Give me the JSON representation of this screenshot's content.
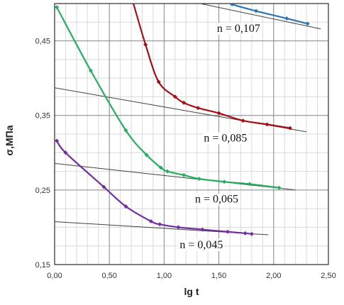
{
  "chart_data": {
    "type": "line",
    "xlabel": "lg t",
    "ylabel": "σ,МПа",
    "xlim": [
      0,
      2.5
    ],
    "ylim": [
      0.15,
      0.5
    ],
    "x_ticks": [
      0,
      0.5,
      1,
      1.5,
      2,
      2.5
    ],
    "x_tick_labels": [
      "0,00",
      "0,50",
      "1,00",
      "1,50",
      "2,00",
      "2,50"
    ],
    "y_ticks": [
      0.15,
      0.25,
      0.35,
      0.45
    ],
    "y_tick_labels": [
      "0,15",
      "0,25",
      "0,35",
      "0,45"
    ],
    "x_minor_step": 0.1,
    "y_minor_step": 0.025,
    "grid": true,
    "series": [
      {
        "color": "#2e75b6",
        "points": [
          [
            1.53,
            0.505
          ],
          [
            1.62,
            0.499
          ],
          [
            1.84,
            0.49
          ],
          [
            2.12,
            0.48
          ],
          [
            2.31,
            0.473
          ]
        ]
      },
      {
        "color": "#a50f15",
        "points": [
          [
            0.7,
            0.51
          ],
          [
            0.83,
            0.445
          ],
          [
            0.95,
            0.395
          ],
          [
            1.1,
            0.375
          ],
          [
            1.18,
            0.367
          ],
          [
            1.31,
            0.36
          ],
          [
            1.5,
            0.353
          ],
          [
            1.72,
            0.343
          ],
          [
            1.94,
            0.338
          ],
          [
            2.15,
            0.333
          ]
        ]
      },
      {
        "color": "#27ae60",
        "points": [
          [
            0.02,
            0.495
          ],
          [
            0.33,
            0.41
          ],
          [
            0.65,
            0.33
          ],
          [
            0.84,
            0.297
          ],
          [
            0.97,
            0.28
          ],
          [
            1.03,
            0.275
          ],
          [
            1.18,
            0.27
          ],
          [
            1.32,
            0.265
          ],
          [
            1.55,
            0.261
          ],
          [
            1.78,
            0.258
          ],
          [
            2.05,
            0.253
          ]
        ]
      },
      {
        "color": "#7030a0",
        "points": [
          [
            0.02,
            0.316
          ],
          [
            0.1,
            0.3
          ],
          [
            0.45,
            0.254
          ],
          [
            0.65,
            0.228
          ],
          [
            0.88,
            0.208
          ],
          [
            0.96,
            0.204
          ],
          [
            1.13,
            0.2
          ],
          [
            1.35,
            0.197
          ],
          [
            1.58,
            0.194
          ],
          [
            1.74,
            0.192
          ],
          [
            1.8,
            0.191
          ]
        ]
      }
    ],
    "trend_lines": [
      {
        "from": [
          1.33,
          0.5
        ],
        "to": [
          2.43,
          0.466
        ]
      },
      {
        "from": [
          -0.27,
          0.394
        ],
        "to": [
          2.3,
          0.328
        ]
      },
      {
        "from": [
          -0.27,
          0.29
        ],
        "to": [
          2.2,
          0.25
        ]
      },
      {
        "from": [
          -0.27,
          0.21
        ],
        "to": [
          1.95,
          0.19
        ]
      }
    ],
    "annotations": [
      {
        "text": "n = 0,107",
        "x": 1.68,
        "y": 0.462
      },
      {
        "text": "n = 0,085",
        "x": 1.56,
        "y": 0.315
      },
      {
        "text": "n = 0,065",
        "x": 1.48,
        "y": 0.233
      },
      {
        "text": "n = 0,045",
        "x": 1.34,
        "y": 0.172
      }
    ]
  }
}
